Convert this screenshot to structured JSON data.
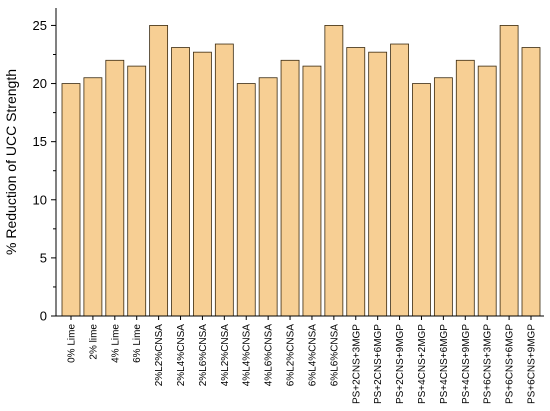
{
  "chart_data": {
    "type": "bar",
    "title": "",
    "xlabel": "",
    "ylabel": "% Reduction of UCC Strength",
    "ylim": [
      0,
      26.5
    ],
    "yticks": [
      0,
      5,
      10,
      15,
      20,
      25
    ],
    "grid": false,
    "legend": "none",
    "categories": [
      "0% Lime",
      "2% lime",
      "4% Lime",
      "6% Lime",
      "2%L2%CNSA",
      "2%L4%CNSA",
      "2%L6%CNSA",
      "4%L2%CNSA",
      "4%L4%CNSA",
      "4%L6%CNSA",
      "6%L2%CNSA",
      "6%L4%CNSA",
      "6%L6%CNSA",
      "PS+2CNS+3MGP",
      "PS+2CNS+6MGP",
      "PS+2CNS+9MGP",
      "PS+4CNS+2MGP",
      "PS+4CNS+6MGP",
      "PS+4CNS+9MGP",
      "PS+6CNS+3MGP",
      "PS+6CNS+6MGP",
      "PS+6CNS+9MGP"
    ],
    "values": [
      20.0,
      20.5,
      22.0,
      21.5,
      25.0,
      23.1,
      22.7,
      23.4,
      20.0,
      20.5,
      22.0,
      21.5,
      25.0,
      23.1,
      22.7,
      23.4,
      20.0,
      20.5,
      22.0,
      21.5,
      25.0,
      23.1
    ],
    "colors": {
      "bar_fill": "#f7cf94",
      "bar_stroke": "#3a2a10",
      "axis": "#000000"
    }
  }
}
